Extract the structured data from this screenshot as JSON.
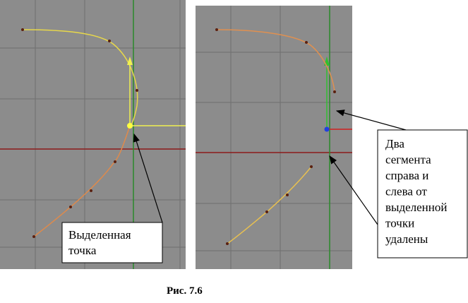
{
  "panels": [
    {
      "callout_lines": [
        "Выделенная",
        "точка"
      ]
    },
    {
      "callout_lines": [
        "Два",
        "сегмента",
        "справа и",
        "слева от",
        "выделенной",
        "точки",
        "удалены"
      ]
    }
  ],
  "caption": "Рис. 7.6"
}
